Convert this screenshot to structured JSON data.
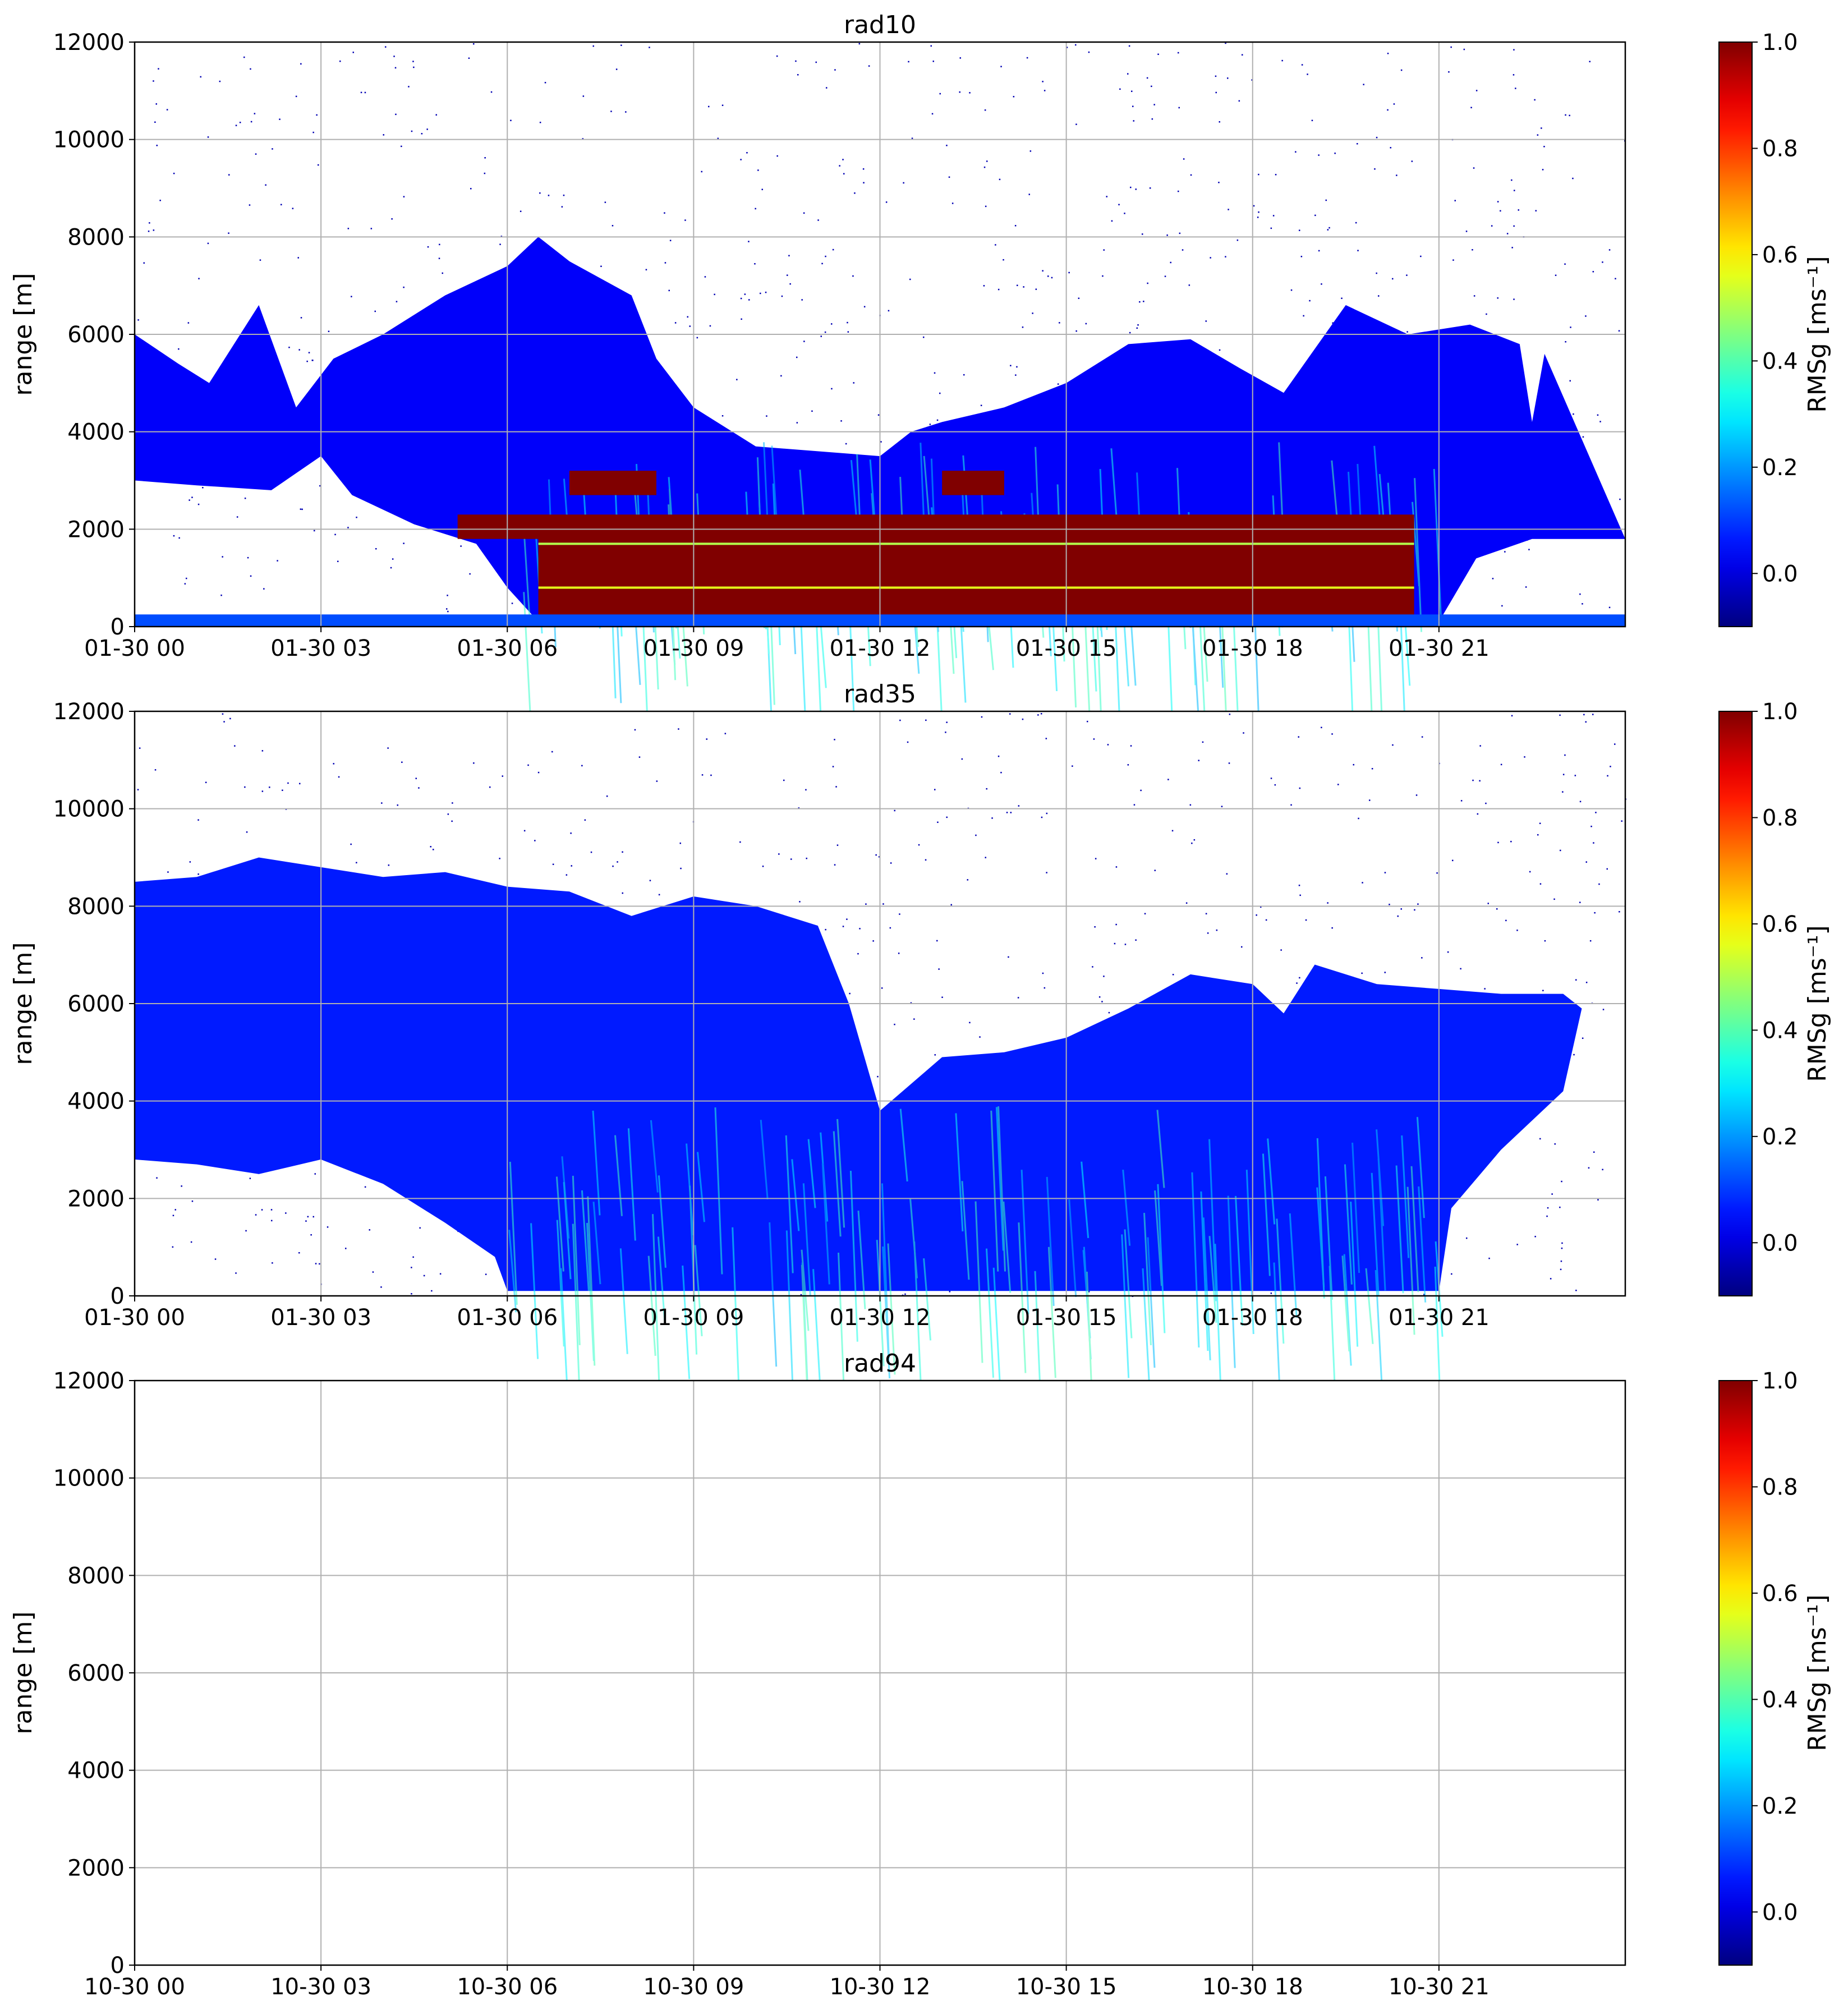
{
  "colorbar_label": "RMSg [ms⁻¹]",
  "chart_data": [
    {
      "type": "heatmap",
      "title": "rad10",
      "ylabel": "range [m]",
      "xlabel": "",
      "x_tick_labels": [
        "01-30 00",
        "01-30 03",
        "01-30 06",
        "01-30 09",
        "01-30 12",
        "01-30 15",
        "01-30 18",
        "01-30 21"
      ],
      "x_tick_hours": [
        0,
        3,
        6,
        9,
        12,
        15,
        18,
        21
      ],
      "xlim_hours": [
        0,
        24
      ],
      "y_ticks": [
        0,
        2000,
        4000,
        6000,
        8000,
        10000,
        12000
      ],
      "ylim": [
        0,
        12000
      ],
      "grid": true,
      "colorbar": {
        "label": "RMSg [ms⁻¹]",
        "ticks": [
          0.0,
          0.2,
          0.4,
          0.6,
          0.8,
          1.0
        ],
        "range": [
          -0.1,
          1.0
        ],
        "colormap": "jet"
      },
      "cloud_top": [
        [
          0,
          6000
        ],
        [
          0.7,
          5400
        ],
        [
          1.2,
          5000
        ],
        [
          2.0,
          6600
        ],
        [
          2.6,
          4500
        ],
        [
          3.2,
          5500
        ],
        [
          4,
          6000
        ],
        [
          5,
          6800
        ],
        [
          6,
          7400
        ],
        [
          6.5,
          8000
        ],
        [
          7,
          7500
        ],
        [
          8,
          6800
        ],
        [
          8.4,
          5500
        ],
        [
          9,
          4500
        ],
        [
          10,
          3700
        ],
        [
          11,
          3600
        ],
        [
          12,
          3500
        ],
        [
          12.5,
          4000
        ],
        [
          13,
          4200
        ],
        [
          14,
          4500
        ],
        [
          15,
          5000
        ],
        [
          16,
          5800
        ],
        [
          17,
          5900
        ],
        [
          17.8,
          5300
        ],
        [
          18.5,
          4800
        ],
        [
          19.5,
          6600
        ],
        [
          20.5,
          6000
        ],
        [
          21.5,
          6200
        ],
        [
          22.3,
          5800
        ],
        [
          22.5,
          4200
        ],
        [
          22.7,
          5600
        ]
      ],
      "cloud_base": [
        [
          0,
          3000
        ],
        [
          1,
          2900
        ],
        [
          2.2,
          2800
        ],
        [
          3,
          3500
        ],
        [
          3.5,
          2700
        ],
        [
          4.5,
          2100
        ],
        [
          5.5,
          1700
        ],
        [
          6,
          800
        ],
        [
          6.5,
          100
        ],
        [
          21,
          100
        ],
        [
          21.6,
          1400
        ],
        [
          22.5,
          1800
        ],
        [
          24,
          1800
        ]
      ],
      "high_intensity_layer": {
        "start_hour": 6.5,
        "end_hour": 20.6,
        "bottom": 100,
        "top": 3000,
        "value": 1.0
      },
      "surface_clutter": {
        "top": 250,
        "value": 0.2
      },
      "noise_value": 0.05
    },
    {
      "type": "heatmap",
      "title": "rad35",
      "ylabel": "range [m]",
      "xlabel": "",
      "x_tick_labels": [
        "01-30 00",
        "01-30 03",
        "01-30 06",
        "01-30 09",
        "01-30 12",
        "01-30 15",
        "01-30 18",
        "01-30 21"
      ],
      "x_tick_hours": [
        0,
        3,
        6,
        9,
        12,
        15,
        18,
        21
      ],
      "xlim_hours": [
        0,
        24
      ],
      "y_ticks": [
        0,
        2000,
        4000,
        6000,
        8000,
        10000,
        12000
      ],
      "ylim": [
        0,
        12000
      ],
      "grid": true,
      "colorbar": {
        "label": "RMSg [ms⁻¹]",
        "ticks": [
          0.0,
          0.2,
          0.4,
          0.6,
          0.8,
          1.0
        ],
        "range": [
          -0.1,
          1.0
        ],
        "colormap": "jet"
      },
      "cloud_top": [
        [
          0,
          8500
        ],
        [
          1,
          8600
        ],
        [
          2,
          9000
        ],
        [
          3,
          8800
        ],
        [
          4,
          8600
        ],
        [
          5,
          8700
        ],
        [
          6,
          8400
        ],
        [
          7,
          8300
        ],
        [
          8,
          7800
        ],
        [
          9,
          8200
        ],
        [
          10,
          8000
        ],
        [
          11,
          7600
        ],
        [
          11.5,
          6000
        ],
        [
          12,
          3800
        ],
        [
          13,
          4900
        ],
        [
          14,
          5000
        ],
        [
          15,
          5300
        ],
        [
          16,
          5900
        ],
        [
          17,
          6600
        ],
        [
          18,
          6400
        ],
        [
          18.5,
          5800
        ],
        [
          19,
          6800
        ],
        [
          20,
          6400
        ],
        [
          21,
          6300
        ],
        [
          22,
          6200
        ],
        [
          23,
          6200
        ],
        [
          23.3,
          5900
        ]
      ],
      "cloud_base": [
        [
          0,
          2800
        ],
        [
          1,
          2700
        ],
        [
          2,
          2500
        ],
        [
          3,
          2800
        ],
        [
          4,
          2300
        ],
        [
          5,
          1500
        ],
        [
          5.8,
          800
        ],
        [
          6,
          100
        ],
        [
          21,
          100
        ],
        [
          21.2,
          1800
        ],
        [
          22,
          3000
        ],
        [
          23,
          4200
        ],
        [
          23.3,
          5900
        ]
      ],
      "intensity_value": 0.15,
      "noise_value": 0.05
    },
    {
      "type": "heatmap",
      "title": "rad94",
      "ylabel": "range [m]",
      "xlabel": "",
      "x_tick_labels": [
        "10-30 00",
        "10-30 03",
        "10-30 06",
        "10-30 09",
        "10-30 12",
        "10-30 15",
        "10-30 18",
        "10-30 21"
      ],
      "x_tick_hours": [
        0,
        3,
        6,
        9,
        12,
        15,
        18,
        21
      ],
      "xlim_hours": [
        0,
        24
      ],
      "y_ticks": [
        0,
        2000,
        4000,
        6000,
        8000,
        10000,
        12000
      ],
      "ylim": [
        0,
        12000
      ],
      "grid": true,
      "colorbar": {
        "label": "RMSg [ms⁻¹]",
        "ticks": [
          0.0,
          0.2,
          0.4,
          0.6,
          0.8,
          1.0
        ],
        "range": [
          -0.1,
          1.0
        ],
        "colormap": "jet"
      },
      "empty": true
    }
  ]
}
